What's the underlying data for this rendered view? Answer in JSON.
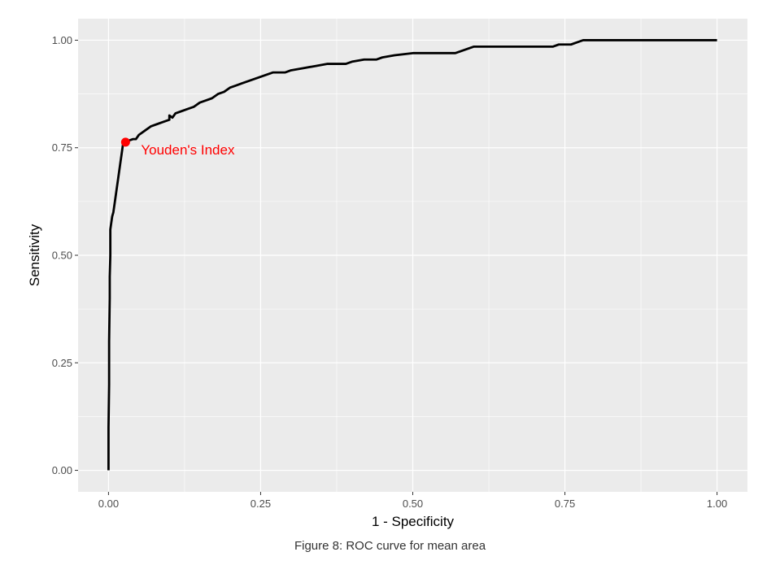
{
  "chart_data": {
    "type": "line",
    "title": "",
    "xlabel": "1 - Specificity",
    "ylabel": "Sensitivity",
    "xlim": [
      -0.05,
      1.05
    ],
    "ylim": [
      -0.05,
      1.05
    ],
    "x_ticks": [
      0.0,
      0.25,
      0.5,
      0.75,
      1.0
    ],
    "x_tick_labels": [
      "0.00",
      "0.25",
      "0.50",
      "0.75",
      "1.00"
    ],
    "y_ticks": [
      0.0,
      0.25,
      0.5,
      0.75,
      1.0
    ],
    "y_tick_labels": [
      "0.00",
      "0.25",
      "0.50",
      "0.75",
      "1.00"
    ],
    "grid": true,
    "legend": "none",
    "series": [
      {
        "x": [
          0.0,
          0.0,
          0.001,
          0.001,
          0.002,
          0.002,
          0.003,
          0.003,
          0.004,
          0.005,
          0.006,
          0.008,
          0.01,
          0.012,
          0.014,
          0.016,
          0.018,
          0.02,
          0.022,
          0.024,
          0.026,
          0.028,
          0.03,
          0.04,
          0.045,
          0.05,
          0.055,
          0.06,
          0.07,
          0.08,
          0.09,
          0.1,
          0.1,
          0.105,
          0.11,
          0.12,
          0.13,
          0.14,
          0.15,
          0.16,
          0.17,
          0.175,
          0.18,
          0.19,
          0.2,
          0.21,
          0.22,
          0.23,
          0.24,
          0.25,
          0.26,
          0.27,
          0.28,
          0.29,
          0.3,
          0.32,
          0.34,
          0.36,
          0.37,
          0.38,
          0.39,
          0.4,
          0.42,
          0.44,
          0.45,
          0.47,
          0.5,
          0.53,
          0.55,
          0.56,
          0.57,
          0.58,
          0.59,
          0.6,
          0.65,
          0.7,
          0.73,
          0.74,
          0.76,
          0.77,
          0.78,
          0.79,
          0.8,
          0.9,
          1.0
        ],
        "y": [
          0.0,
          0.1,
          0.2,
          0.3,
          0.4,
          0.45,
          0.5,
          0.56,
          0.57,
          0.58,
          0.59,
          0.6,
          0.62,
          0.64,
          0.66,
          0.68,
          0.7,
          0.72,
          0.74,
          0.76,
          0.765,
          0.765,
          0.765,
          0.77,
          0.77,
          0.78,
          0.785,
          0.79,
          0.8,
          0.805,
          0.81,
          0.815,
          0.825,
          0.82,
          0.83,
          0.835,
          0.84,
          0.845,
          0.855,
          0.86,
          0.865,
          0.87,
          0.875,
          0.88,
          0.89,
          0.895,
          0.9,
          0.905,
          0.91,
          0.915,
          0.92,
          0.925,
          0.925,
          0.925,
          0.93,
          0.935,
          0.94,
          0.945,
          0.945,
          0.945,
          0.945,
          0.95,
          0.955,
          0.955,
          0.96,
          0.965,
          0.97,
          0.97,
          0.97,
          0.97,
          0.97,
          0.975,
          0.98,
          0.985,
          0.985,
          0.985,
          0.985,
          0.99,
          0.99,
          0.995,
          1.0,
          1.0,
          1.0,
          1.0,
          1.0
        ]
      }
    ],
    "annotations": [
      {
        "x": 0.028,
        "y": 0.763,
        "text": "Youden's Index",
        "color": "#ff0000"
      }
    ]
  },
  "caption": "Figure 8: ROC curve for mean area",
  "colors": {
    "panel_background": "#ebebeb",
    "grid_major": "#ffffff",
    "line": "#000000",
    "marker": "#ff0000"
  }
}
